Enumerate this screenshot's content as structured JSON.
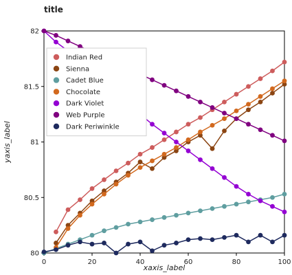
{
  "chart_data": {
    "type": "line",
    "title": "title",
    "xlabel": "xaxis_label",
    "ylabel": "yaxis_label",
    "xlim": [
      0,
      100
    ],
    "ylim": [
      80,
      82
    ],
    "x_ticks": [
      0,
      20,
      40,
      60,
      80,
      100
    ],
    "y_ticks": [
      80,
      80.5,
      81,
      81.5,
      82
    ],
    "x_tick_labels": [
      "0",
      "20",
      "40",
      "60",
      "80",
      "100"
    ],
    "y_tick_labels": [
      "80",
      "80.5",
      "81",
      "81.5",
      "82"
    ],
    "grid": false,
    "legend_position": "top-left",
    "x": [
      0,
      5,
      10,
      15,
      20,
      25,
      30,
      35,
      40,
      45,
      50,
      55,
      60,
      65,
      70,
      75,
      80,
      85,
      90,
      95,
      100
    ],
    "series": [
      {
        "name": "Indian Red",
        "color": "#cd5c5c",
        "values": [
          null,
          80.19,
          80.39,
          80.48,
          80.58,
          80.66,
          80.74,
          80.81,
          80.89,
          80.95,
          81.02,
          81.09,
          81.16,
          81.22,
          81.29,
          81.36,
          81.43,
          81.5,
          81.57,
          81.64,
          81.72
        ]
      },
      {
        "name": "Sienna",
        "color": "#8b4513",
        "values": [
          null,
          80.09,
          80.25,
          80.36,
          80.47,
          80.56,
          80.64,
          80.72,
          80.82,
          80.76,
          80.86,
          80.92,
          81.0,
          81.06,
          80.94,
          81.1,
          81.21,
          81.29,
          81.36,
          81.44,
          81.52
        ]
      },
      {
        "name": "Cadet Blue",
        "color": "#5f9ea0",
        "values": [
          80.0,
          80.04,
          80.08,
          80.12,
          80.16,
          80.2,
          80.23,
          80.26,
          80.28,
          80.3,
          80.32,
          80.34,
          80.36,
          80.38,
          80.4,
          80.42,
          80.44,
          80.46,
          80.48,
          80.5,
          80.53
        ]
      },
      {
        "name": "Chocolate",
        "color": "#d2691e",
        "values": [
          null,
          80.05,
          80.22,
          80.34,
          80.44,
          80.53,
          80.62,
          80.7,
          80.77,
          80.83,
          80.89,
          80.95,
          81.02,
          81.09,
          81.15,
          81.21,
          81.28,
          81.34,
          81.41,
          81.48,
          81.55
        ]
      },
      {
        "name": "Dark Violet",
        "color": "#9400d3",
        "values": [
          82.0,
          81.9,
          81.82,
          81.74,
          81.64,
          81.55,
          81.45,
          81.35,
          81.25,
          81.16,
          81.08,
          81.0,
          80.92,
          80.84,
          80.76,
          80.68,
          80.6,
          80.53,
          80.47,
          80.42,
          80.37
        ]
      },
      {
        "name": "Web Purple",
        "color": "#800080",
        "values": [
          82.0,
          81.96,
          81.91,
          81.86,
          81.81,
          81.76,
          81.71,
          81.66,
          81.61,
          81.56,
          81.51,
          81.46,
          81.41,
          81.36,
          81.31,
          81.26,
          81.21,
          81.16,
          81.11,
          81.06,
          81.01
        ]
      },
      {
        "name": "Dark Periwinkle",
        "color": "#1e2a5e",
        "values": [
          80.01,
          80.03,
          80.07,
          80.1,
          80.08,
          80.09,
          80.0,
          80.08,
          80.1,
          80.02,
          80.07,
          80.09,
          80.12,
          80.13,
          80.12,
          80.14,
          80.16,
          80.1,
          80.16,
          80.1,
          80.16
        ]
      }
    ]
  }
}
